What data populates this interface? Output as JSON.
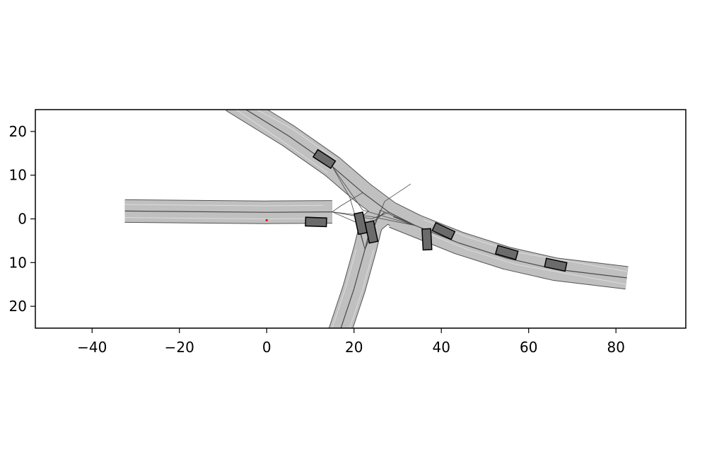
{
  "chart_data": {
    "type": "scatter",
    "title": "",
    "xlabel": "",
    "ylabel": "",
    "xlim": [
      -53,
      96
    ],
    "ylim": [
      -25,
      25
    ],
    "xticks": [
      -40,
      -20,
      0,
      20,
      40,
      60,
      80
    ],
    "yticks": [
      20,
      10,
      0,
      -10,
      -20
    ],
    "xtick_labels": [
      "−40",
      "−20",
      "0",
      "20",
      "40",
      "60",
      "80"
    ],
    "ytick_labels": [
      "20",
      "10",
      "0",
      "10",
      "20"
    ],
    "grid": false,
    "ego_point": {
      "x": 0,
      "y": -0.3,
      "color": "#ff0000"
    },
    "colors": {
      "road_fill": "#c0c0c0",
      "road_edge": "#555555",
      "lane_divider": "#4a4a4a",
      "lane_marking": "#e2e2e2",
      "vehicle_fill": "#6b6b6b",
      "vehicle_edge": "#000000"
    },
    "vehicles": [
      {
        "x": 13.2,
        "y": 13.7,
        "heading": -33
      },
      {
        "x": 11.3,
        "y": -0.7,
        "heading": -2
      },
      {
        "x": 21.5,
        "y": -1.0,
        "heading": -78
      },
      {
        "x": 24.0,
        "y": -3.0,
        "heading": -78
      },
      {
        "x": 36.7,
        "y": -4.7,
        "heading": -87
      },
      {
        "x": 40.5,
        "y": -2.8,
        "heading": -25
      },
      {
        "x": 55.0,
        "y": -7.7,
        "heading": -16
      },
      {
        "x": 66.2,
        "y": -10.5,
        "heading": -12
      }
    ]
  }
}
